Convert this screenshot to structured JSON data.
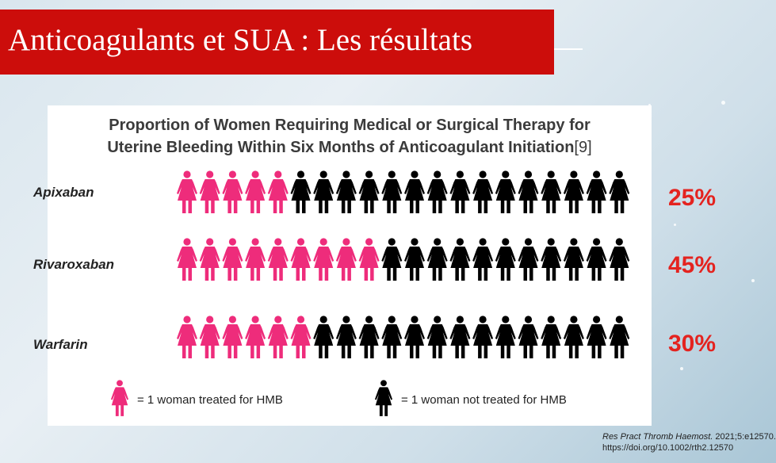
{
  "slide": {
    "title": "Anticoagulants et SUA : Les résultats"
  },
  "chart_data": {
    "type": "pictograph",
    "title_line1": "Proportion of Women Requiring Medical or Surgical Therapy for",
    "title_line2": "Uterine Bleeding Within Six Months of Anticoagulant Initiation",
    "title_ref": "[9]",
    "total_icons": 20,
    "series": [
      {
        "name": "Apixaban",
        "treated": 5,
        "percent_label": "25%",
        "value": 25
      },
      {
        "name": "Rivaroxaban",
        "treated": 9,
        "percent_label": "45%",
        "value": 45
      },
      {
        "name": "Warfarin",
        "treated": 6,
        "percent_label": "30%",
        "value": 30
      }
    ],
    "colors": {
      "treated": "#ee2c7b",
      "untreated": "#000000",
      "percent": "#e4231f"
    },
    "legend": {
      "treated_label": "= 1 woman treated for HMB",
      "untreated_label": "= 1 woman not treated for HMB"
    }
  },
  "citation": {
    "journal": "Res Pract Thromb Haemost.",
    "detail": " 2021;5:e12570.",
    "doi": "https://doi.org/10.1002/rth2.12570"
  }
}
